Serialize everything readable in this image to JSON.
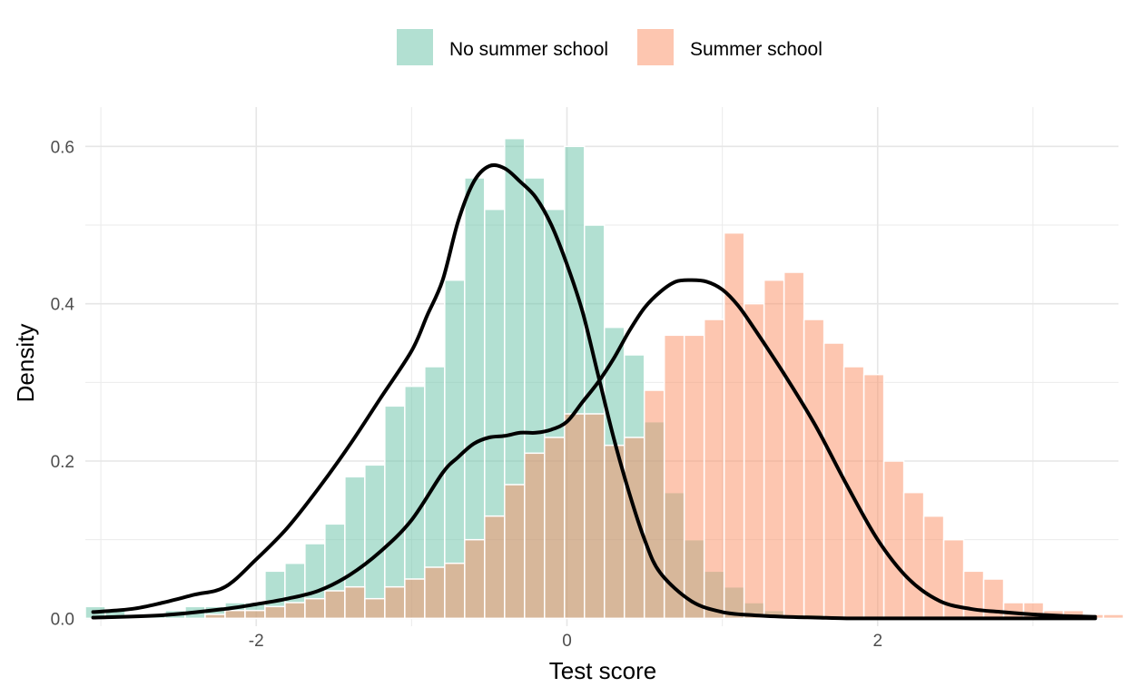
{
  "chart_data": {
    "type": "bar",
    "subtype": "overlaid-histogram-with-density",
    "xlabel": "Test score",
    "ylabel": "Density",
    "xlim": [
      -3.1,
      3.55
    ],
    "ylim": [
      -0.01,
      0.65
    ],
    "xticks": [
      -2,
      0,
      2
    ],
    "xticks_minor": [
      -3,
      -1,
      1,
      3
    ],
    "yticks": [
      0.0,
      0.2,
      0.4,
      0.6
    ],
    "yticks_minor": [
      0.1,
      0.3,
      0.5
    ],
    "ytick_labels": [
      "0.0",
      "0.2",
      "0.4",
      "0.6"
    ],
    "xtick_labels": [
      "-2",
      "0",
      "2"
    ],
    "grid": true,
    "legend_position": "top",
    "bin_width": 0.1285,
    "bin_start": -3.1,
    "series": [
      {
        "name": "No summer school",
        "color": "#66c2a5",
        "opacity": 0.5,
        "values": [
          0.015,
          0.01,
          0.005,
          0.005,
          0.01,
          0.015,
          0.015,
          0.02,
          0.02,
          0.06,
          0.07,
          0.095,
          0.12,
          0.18,
          0.195,
          0.27,
          0.295,
          0.32,
          0.43,
          0.56,
          0.52,
          0.61,
          0.56,
          0.52,
          0.6,
          0.5,
          0.37,
          0.335,
          0.25,
          0.16,
          0.1,
          0.06,
          0.04,
          0.02,
          0.01,
          0.005,
          0.005,
          0.0,
          0.0,
          0.0,
          0.0,
          0.0,
          0.0,
          0.0,
          0.0,
          0.0,
          0.0,
          0.0,
          0.0,
          0.0,
          0.0,
          0.0
        ],
        "density": {
          "x": [
            -3.05,
            -2.8,
            -2.6,
            -2.4,
            -2.2,
            -2.0,
            -1.8,
            -1.6,
            -1.4,
            -1.2,
            -1.0,
            -0.9,
            -0.8,
            -0.7,
            -0.6,
            -0.5,
            -0.4,
            -0.3,
            -0.2,
            -0.1,
            0.0,
            0.1,
            0.2,
            0.3,
            0.4,
            0.5,
            0.6,
            0.8,
            1.0,
            1.2,
            1.4,
            1.6,
            1.8,
            2.0,
            2.2,
            2.5,
            3.0,
            3.4
          ],
          "y": [
            0.008,
            0.012,
            0.02,
            0.03,
            0.04,
            0.075,
            0.115,
            0.165,
            0.22,
            0.28,
            0.34,
            0.385,
            0.43,
            0.505,
            0.555,
            0.575,
            0.572,
            0.555,
            0.535,
            0.5,
            0.45,
            0.39,
            0.31,
            0.23,
            0.16,
            0.1,
            0.058,
            0.022,
            0.008,
            0.004,
            0.002,
            0.001,
            0.0,
            0.0,
            0.0,
            0.0,
            0.0,
            0.0
          ]
        }
      },
      {
        "name": "Summer school",
        "color": "#fc8d62",
        "opacity": 0.5,
        "values": [
          0.0,
          0.0,
          0.0,
          0.0,
          0.0,
          0.0,
          0.005,
          0.01,
          0.01,
          0.015,
          0.02,
          0.025,
          0.035,
          0.04,
          0.025,
          0.04,
          0.05,
          0.065,
          0.07,
          0.1,
          0.13,
          0.17,
          0.21,
          0.23,
          0.26,
          0.26,
          0.22,
          0.23,
          0.29,
          0.36,
          0.36,
          0.38,
          0.49,
          0.4,
          0.43,
          0.44,
          0.38,
          0.35,
          0.32,
          0.31,
          0.2,
          0.16,
          0.13,
          0.1,
          0.06,
          0.05,
          0.02,
          0.02,
          0.01,
          0.01,
          0.005,
          0.005
        ],
        "density": {
          "x": [
            -3.05,
            -2.6,
            -2.2,
            -2.0,
            -1.8,
            -1.6,
            -1.4,
            -1.2,
            -1.0,
            -0.8,
            -0.7,
            -0.6,
            -0.5,
            -0.4,
            -0.3,
            -0.2,
            -0.1,
            0.0,
            0.1,
            0.2,
            0.3,
            0.4,
            0.5,
            0.6,
            0.7,
            0.8,
            0.9,
            1.0,
            1.1,
            1.2,
            1.4,
            1.6,
            1.8,
            2.0,
            2.2,
            2.4,
            2.6,
            2.8,
            3.0,
            3.2,
            3.4
          ],
          "y": [
            0.001,
            0.004,
            0.012,
            0.018,
            0.025,
            0.035,
            0.055,
            0.085,
            0.125,
            0.185,
            0.205,
            0.222,
            0.23,
            0.232,
            0.236,
            0.236,
            0.24,
            0.25,
            0.275,
            0.3,
            0.33,
            0.365,
            0.395,
            0.415,
            0.428,
            0.43,
            0.428,
            0.418,
            0.398,
            0.37,
            0.31,
            0.245,
            0.17,
            0.1,
            0.05,
            0.022,
            0.012,
            0.008,
            0.005,
            0.003,
            0.002
          ]
        }
      }
    ]
  }
}
